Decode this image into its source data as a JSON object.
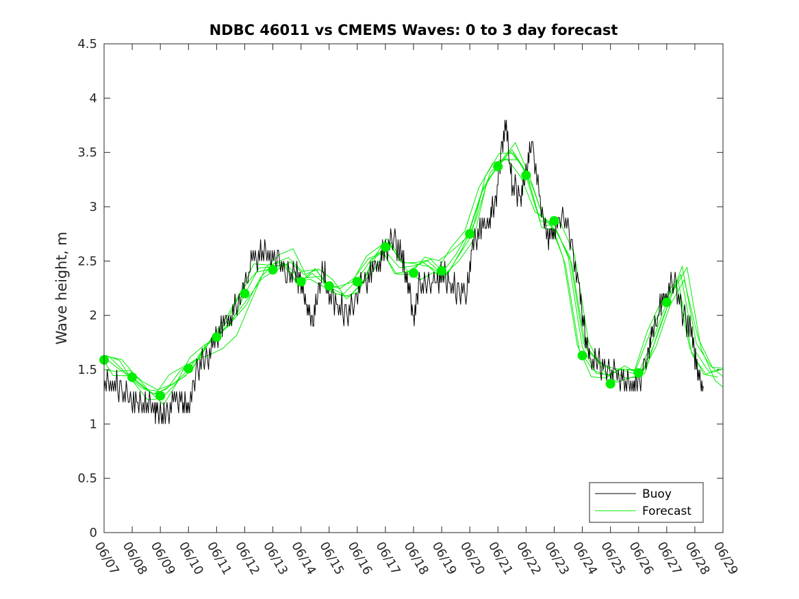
{
  "chart_data": {
    "type": "line",
    "title": "NDBC 46011 vs CMEMS Waves: 0 to 3 day forecast",
    "xlabel": "",
    "ylabel": "Wave height, m",
    "ylim": [
      0,
      4.5
    ],
    "yticks": [
      "0",
      "0.5",
      "1",
      "1.5",
      "2",
      "2.5",
      "3",
      "3.5",
      "4",
      "4.5"
    ],
    "xticks": [
      "06/07",
      "06/08",
      "06/09",
      "06/10",
      "06/11",
      "06/12",
      "06/13",
      "06/14",
      "06/15",
      "06/16",
      "06/17",
      "06/18",
      "06/19",
      "06/20",
      "06/21",
      "06/22",
      "06/23",
      "06/24",
      "06/25",
      "06/26",
      "06/27",
      "06/28",
      "06/29"
    ],
    "xlim_days": [
      7,
      29
    ],
    "legend": {
      "position": "bottom-right",
      "entries": [
        "Buoy",
        "Forecast"
      ]
    },
    "colors": {
      "buoy": "#000000",
      "forecast": "#00ee00",
      "axes": "#262626"
    },
    "series": [
      {
        "name": "Buoy",
        "x": [
          7,
          7.3,
          7.6,
          7.9,
          8.2,
          8.5,
          8.8,
          9.0,
          9.2,
          9.5,
          9.8,
          10.0,
          10.3,
          10.6,
          10.9,
          11.2,
          11.5,
          11.8,
          12.0,
          12.3,
          12.6,
          12.9,
          13.2,
          13.5,
          13.8,
          14.0,
          14.2,
          14.4,
          14.6,
          14.8,
          15.0,
          15.3,
          15.6,
          15.9,
          16.2,
          16.5,
          16.8,
          17.0,
          17.3,
          17.6,
          17.8,
          18.0,
          18.2,
          18.5,
          18.8,
          19.0,
          19.3,
          19.6,
          19.9,
          20.1,
          20.4,
          20.7,
          20.9,
          21.1,
          21.3,
          21.5,
          21.8,
          22.0,
          22.2,
          22.5,
          22.8,
          23.0,
          23.3,
          23.6,
          23.9,
          24.1,
          24.3,
          24.6,
          24.9,
          25.2,
          25.5,
          25.8,
          26.0,
          26.3,
          26.5,
          26.8,
          27.0,
          27.3,
          27.6,
          27.9,
          28.1,
          28.3
        ],
        "y": [
          1.35,
          1.4,
          1.3,
          1.25,
          1.15,
          1.2,
          1.15,
          1.05,
          1.1,
          1.2,
          1.2,
          1.15,
          1.5,
          1.6,
          1.7,
          1.9,
          2.0,
          2.1,
          2.3,
          2.5,
          2.6,
          2.55,
          2.5,
          2.35,
          2.4,
          2.3,
          2.1,
          1.9,
          2.2,
          2.4,
          2.2,
          2.1,
          2.0,
          2.1,
          2.3,
          2.4,
          2.5,
          2.6,
          2.7,
          2.5,
          2.3,
          2.0,
          2.25,
          2.3,
          2.3,
          2.4,
          2.3,
          2.2,
          2.2,
          2.6,
          2.8,
          2.9,
          3.0,
          3.5,
          3.7,
          3.2,
          3.1,
          3.3,
          3.6,
          3.0,
          2.7,
          2.8,
          2.9,
          2.7,
          2.2,
          1.8,
          1.6,
          1.55,
          1.5,
          1.45,
          1.4,
          1.35,
          1.4,
          1.6,
          1.8,
          2.1,
          2.2,
          2.3,
          2.0,
          1.8,
          1.5,
          1.35
        ]
      },
      {
        "name": "Forecast",
        "x": [
          7,
          7.5,
          8,
          8.5,
          9,
          9.5,
          10,
          10.5,
          11,
          11.5,
          12,
          12.5,
          13,
          13.5,
          14,
          14.5,
          15,
          15.5,
          16,
          16.5,
          17,
          17.5,
          18,
          18.5,
          19,
          19.5,
          20,
          20.5,
          21,
          21.5,
          22,
          22.5,
          23,
          23.5,
          24,
          24.5,
          25,
          25.5,
          26,
          26.5,
          27,
          27.5,
          28,
          28.5,
          29
        ],
        "y": [
          1.58,
          1.52,
          1.45,
          1.3,
          1.27,
          1.4,
          1.52,
          1.65,
          1.8,
          1.95,
          2.2,
          2.4,
          2.45,
          2.5,
          2.3,
          2.4,
          2.28,
          2.22,
          2.3,
          2.5,
          2.62,
          2.45,
          2.42,
          2.5,
          2.42,
          2.55,
          2.75,
          3.2,
          3.4,
          3.5,
          3.3,
          2.9,
          2.85,
          2.5,
          1.7,
          1.5,
          1.45,
          1.5,
          1.48,
          1.8,
          2.1,
          2.35,
          1.7,
          1.5,
          1.47
        ],
        "markers_x": [
          7,
          8,
          9,
          10,
          11,
          12,
          13,
          14,
          15,
          16,
          17,
          18,
          19,
          20,
          21,
          22,
          23,
          24,
          25,
          26,
          27
        ],
        "markers_y": [
          1.59,
          1.43,
          1.26,
          1.51,
          1.8,
          2.2,
          2.42,
          2.31,
          2.27,
          2.31,
          2.63,
          2.39,
          2.41,
          2.75,
          3.37,
          3.29,
          2.87,
          1.63,
          1.37,
          1.47,
          2.12
        ]
      }
    ]
  }
}
